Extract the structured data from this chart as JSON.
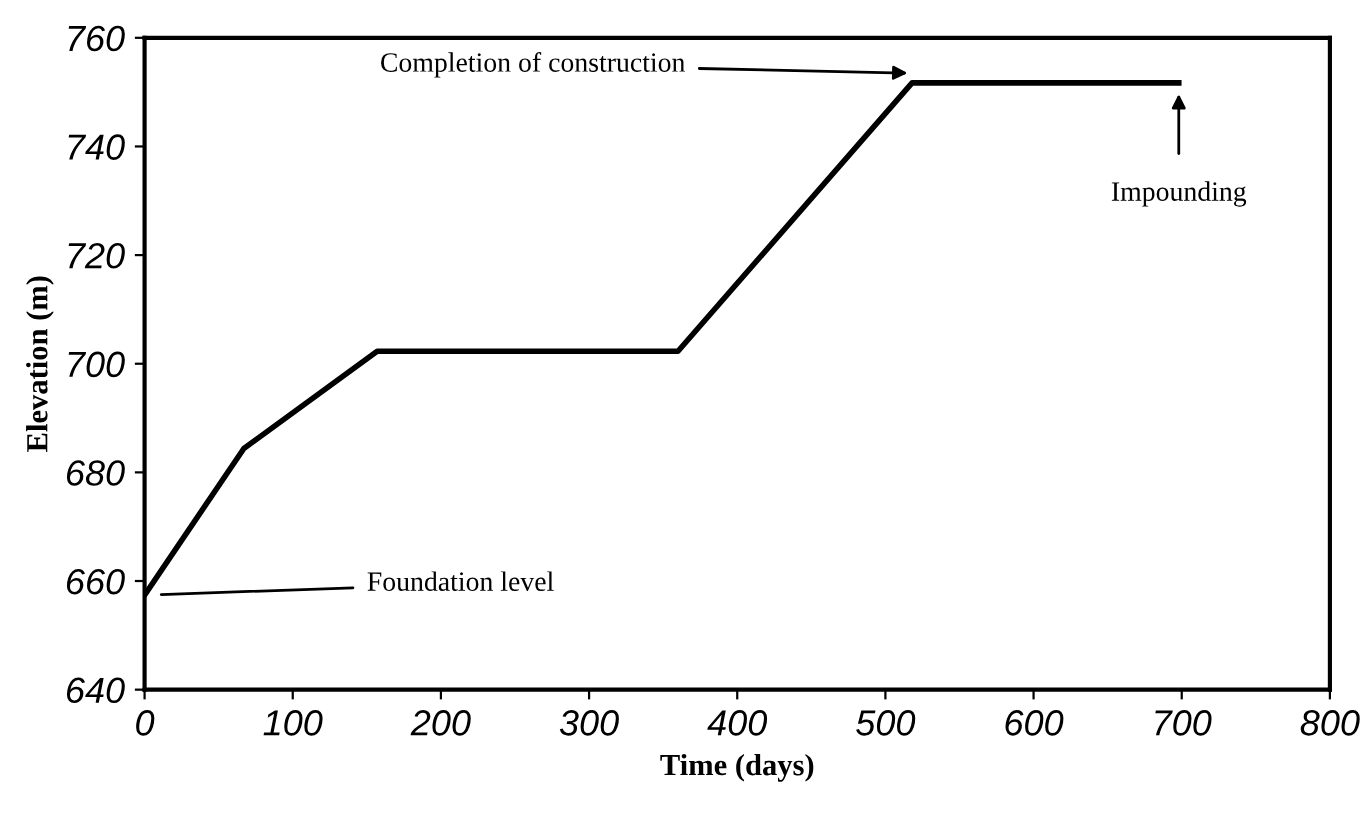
{
  "chart_data": {
    "type": "line",
    "xlabel": "Time (days)",
    "ylabel": "Elevation (m)",
    "series": [
      {
        "color": "#000000",
        "x": [
          0,
          67,
          157,
          360,
          518,
          698
        ],
        "values": [
          657.4,
          684.4,
          702.3,
          702.3,
          751.7,
          751.7
        ]
      }
    ],
    "xlim": [
      0,
      800
    ],
    "ylim": [
      640,
      760
    ],
    "xticks": [
      0,
      100,
      200,
      300,
      400,
      500,
      600,
      700,
      800
    ],
    "yticks": [
      640,
      660,
      680,
      700,
      720,
      740,
      760
    ],
    "grid": false,
    "marker": "none",
    "line_style": "solid",
    "annotations": [
      {
        "text": "Foundation level",
        "x": 0,
        "y": 657.4
      },
      {
        "text": "Completion of construction",
        "x": 515,
        "y": 753.5
      },
      {
        "text": "Impounding",
        "x": 698,
        "y": 751.7
      }
    ]
  }
}
